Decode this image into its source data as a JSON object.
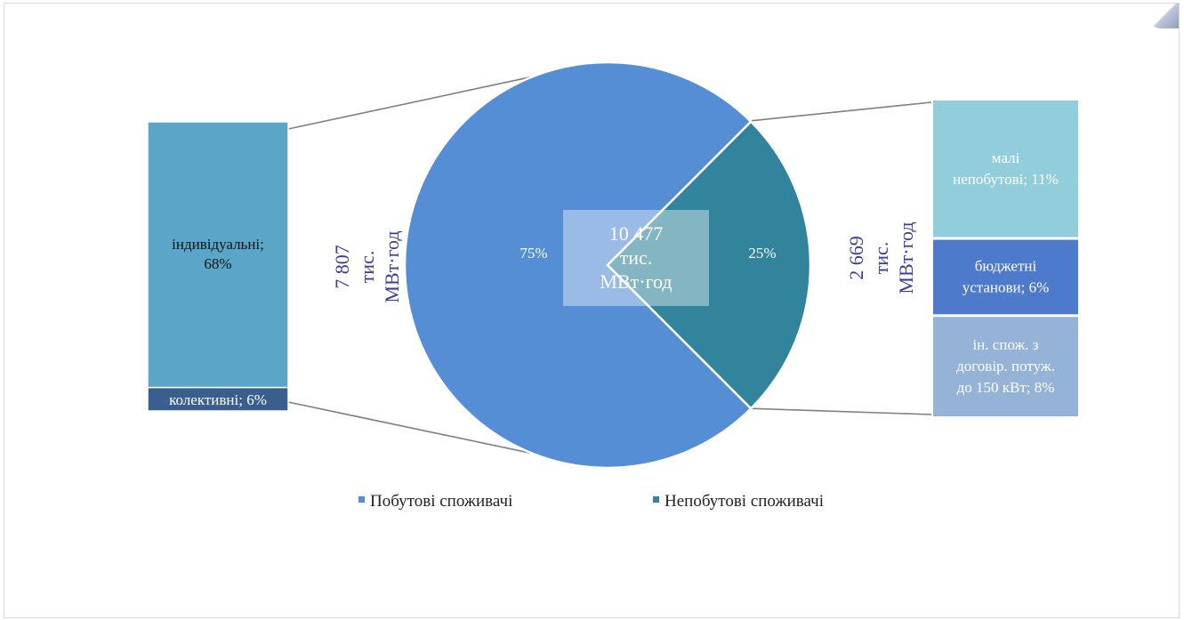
{
  "chart_data": {
    "type": "pie",
    "center_total": [
      "10 477",
      "тис.",
      "МВт·год"
    ],
    "legend_position": "bottom",
    "series": [
      {
        "name": "Побутові споживачі",
        "value": 75,
        "label": "75%",
        "color": "#558ED5"
      },
      {
        "name": "Непобутові споживачі",
        "value": 25,
        "label": "25%",
        "color": "#31849B"
      }
    ],
    "left_bar": {
      "total_label": [
        "7 807",
        "тис.",
        "МВт·год"
      ],
      "segments": [
        {
          "name": "індивідуальні",
          "value": 68,
          "label": [
            "індивідуальні;",
            "68%"
          ],
          "color": "#5AA6C8"
        },
        {
          "name": "колективні",
          "value": 6,
          "label": [
            "колективні; 6%"
          ],
          "color": "#3A5F8F"
        }
      ]
    },
    "right_bar": {
      "total_label": [
        "2 669",
        "тис.",
        "МВт·год"
      ],
      "segments": [
        {
          "name": "малі непобутові",
          "value": 11,
          "label": [
            "малі",
            "непобутові; 11%"
          ],
          "color": "#92CDDC"
        },
        {
          "name": "бюджетні установи",
          "value": 6,
          "label": [
            "бюджетні",
            "установи; 6%"
          ],
          "color": "#4E7ACB"
        },
        {
          "name": "ін. спож. з договір. потуж. до 150 кВт",
          "value": 8,
          "label": [
            "ін. спож. з",
            "договір. потуж.",
            "до 150 кВт; 8%"
          ],
          "color": "#95B3D7"
        }
      ]
    },
    "legend": [
      {
        "label": "Побутові споживачі",
        "color": "#558ED5"
      },
      {
        "label": "Непобутові споживачі",
        "color": "#31849B"
      }
    ]
  }
}
